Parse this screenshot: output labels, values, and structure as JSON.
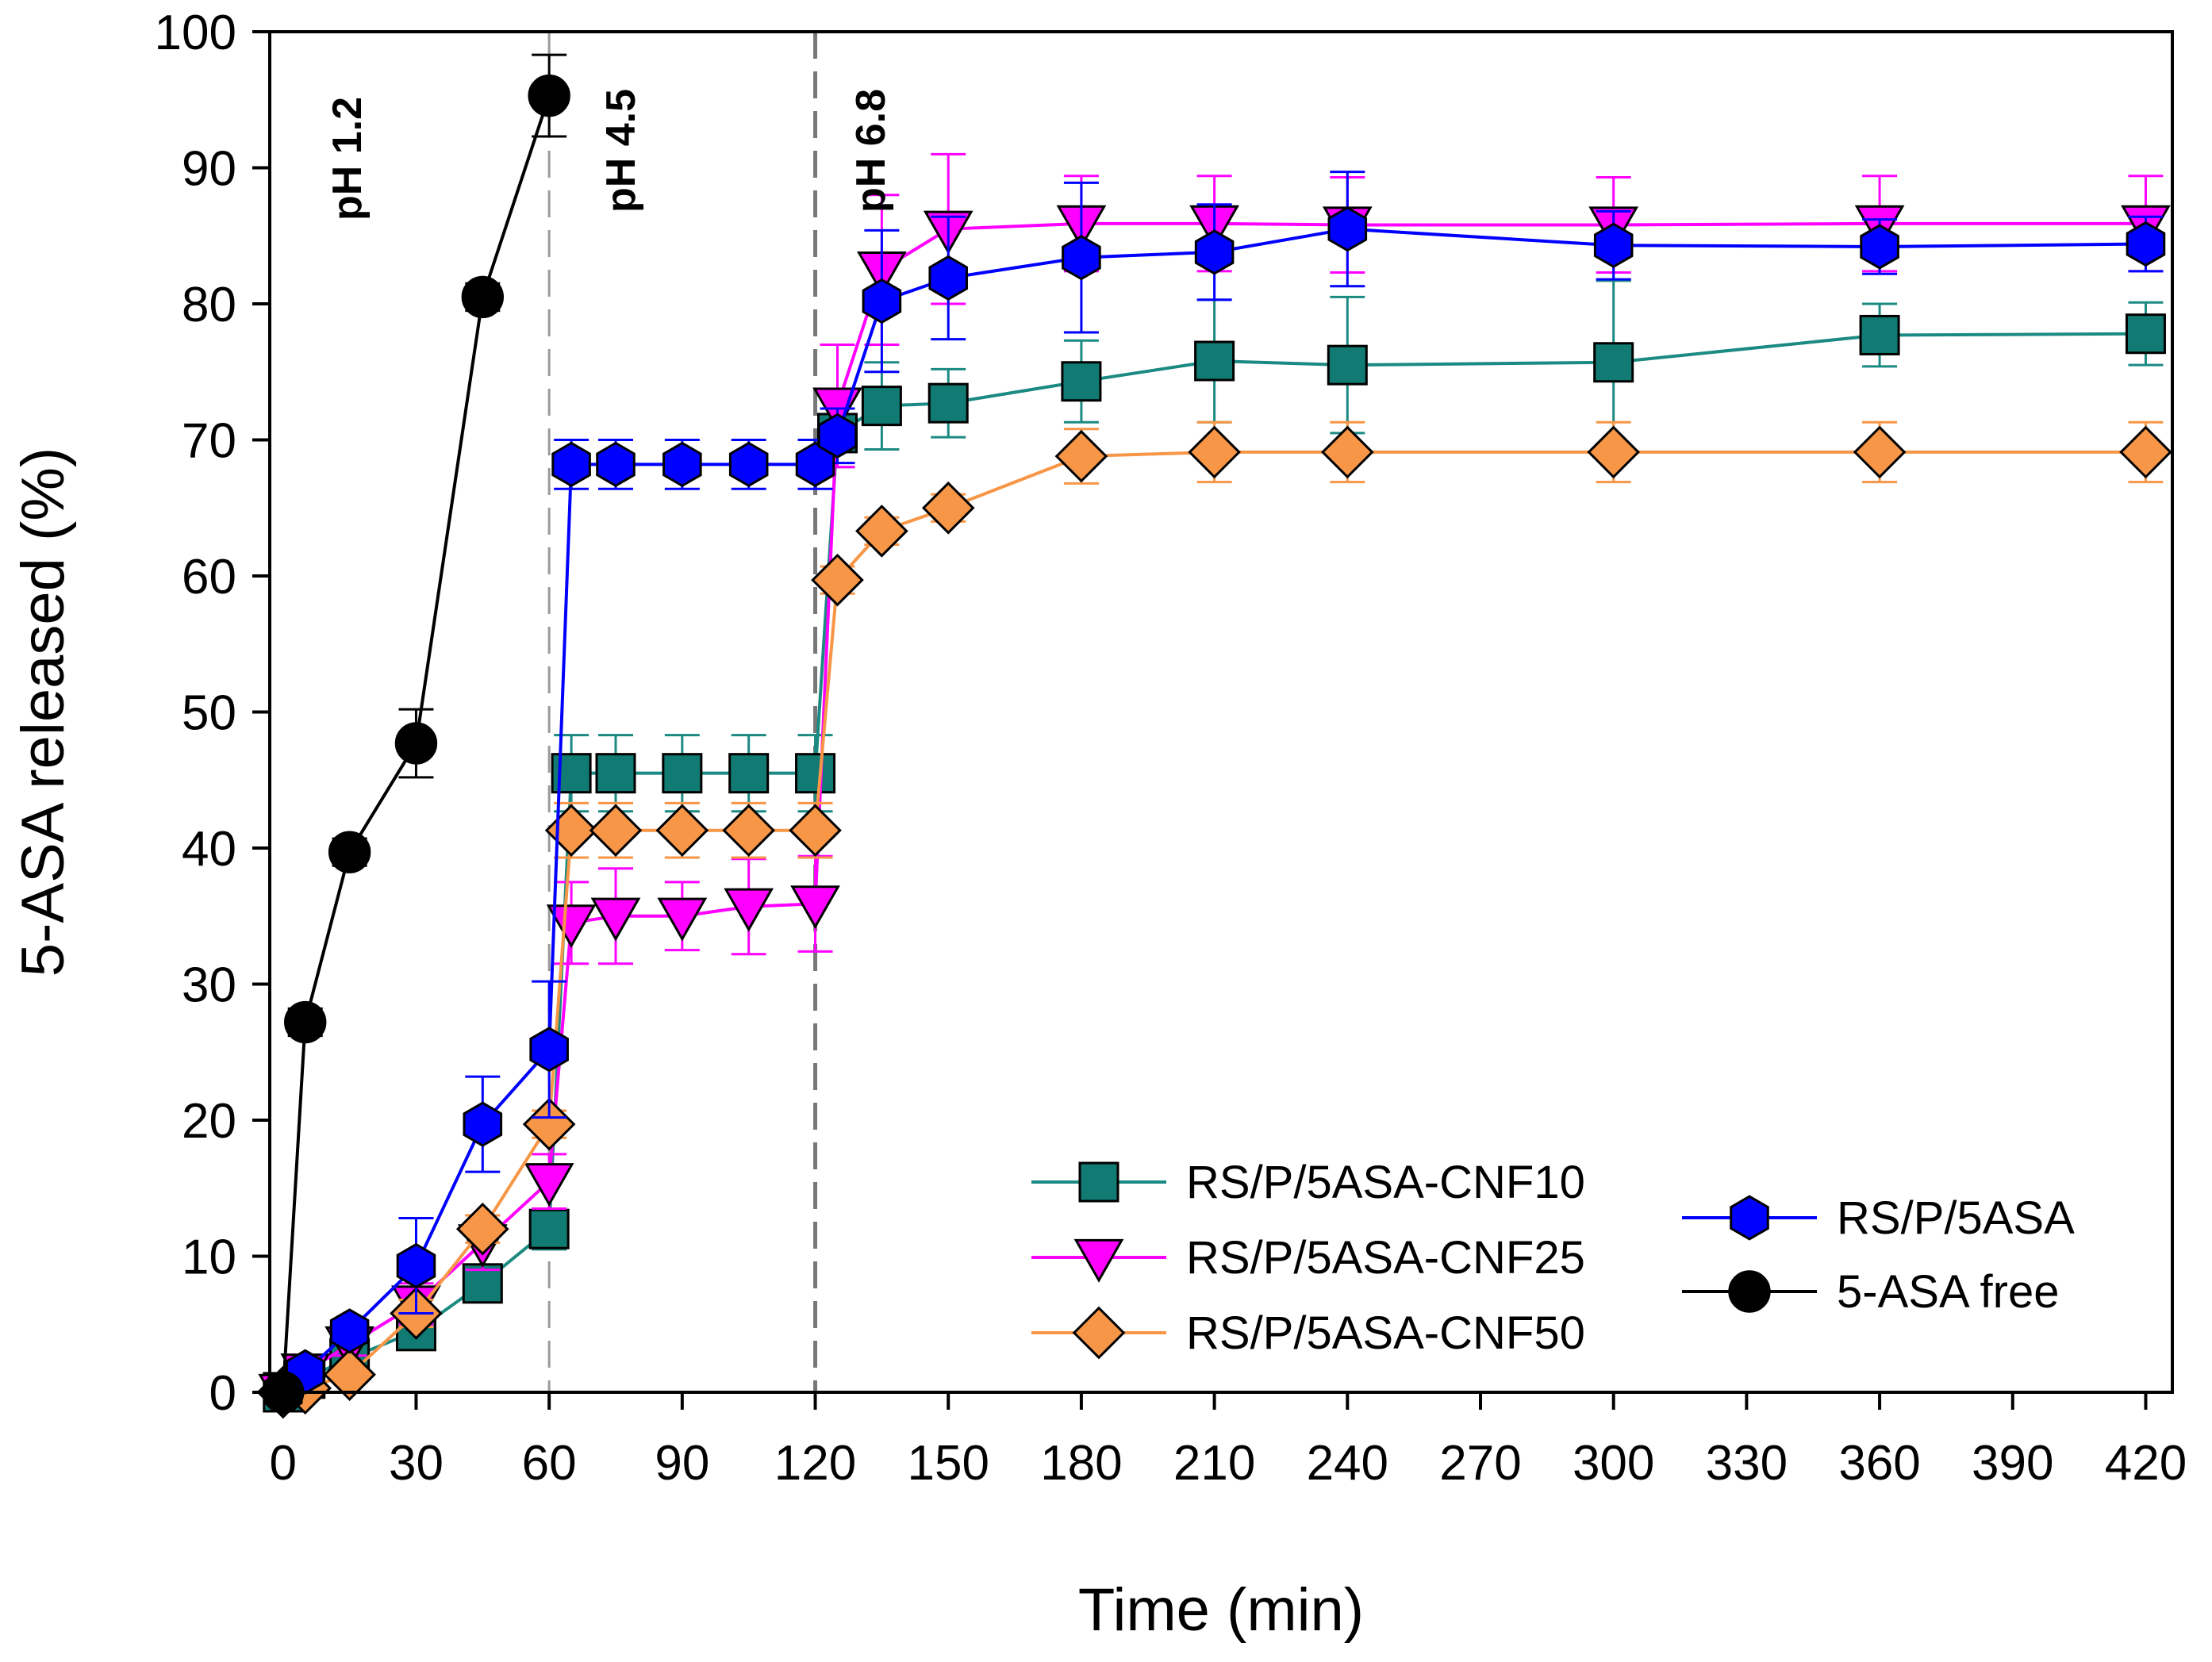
{
  "chart_data": {
    "type": "line",
    "title": "",
    "xlabel": "Time (min)",
    "ylabel": "5-ASA released (%)",
    "xlim": [
      -3,
      426
    ],
    "ylim": [
      0,
      100
    ],
    "x_ticks": [
      0,
      30,
      60,
      90,
      120,
      150,
      180,
      210,
      240,
      270,
      300,
      330,
      360,
      390,
      420
    ],
    "y_ticks": [
      0,
      10,
      20,
      30,
      40,
      50,
      60,
      70,
      80,
      90,
      100
    ],
    "x_tick_labels": [
      "0",
      "30",
      "60",
      "90",
      "120",
      "150",
      "180",
      "210",
      "240",
      "270",
      "300",
      "330",
      "360",
      "390",
      "420"
    ],
    "y_tick_labels": [
      "0",
      "10",
      "20",
      "30",
      "40",
      "50",
      "60",
      "70",
      "80",
      "90",
      "100"
    ],
    "phase_markers": [
      {
        "x": 60,
        "label": "pH 4.5"
      },
      {
        "x": 120,
        "label": "pH 6.8"
      }
    ],
    "phase_labels": [
      "pH 1.2",
      "pH 4.5",
      "pH 6.8"
    ],
    "legend_position": "bottom-right",
    "series": [
      {
        "name": "RS/P/5ASA-CNF10",
        "color": "#1b8a82",
        "fill": "#117a72",
        "marker": "square",
        "x": [
          0,
          5,
          15,
          30,
          45,
          60,
          65,
          75,
          90,
          105,
          120,
          125,
          135,
          150,
          180,
          210,
          240,
          300,
          360,
          420
        ],
        "y": [
          0,
          1.0,
          2.5,
          4.5,
          8.0,
          12.0,
          45.5,
          45.5,
          45.5,
          45.5,
          45.5,
          70.5,
          72.5,
          72.7,
          74.3,
          75.8,
          75.5,
          75.7,
          77.7,
          77.8
        ],
        "err": [
          0,
          0.5,
          0.8,
          1.2,
          1.2,
          1.5,
          2.8,
          2.8,
          2.8,
          2.8,
          2.8,
          2.5,
          3.2,
          2.5,
          3.0,
          4.5,
          5.0,
          6.0,
          2.3,
          2.3
        ]
      },
      {
        "name": "RS/P/5ASA-CNF25",
        "color": "#ff00ff",
        "fill": "#ff00ff",
        "marker": "triangle-down",
        "x": [
          0,
          5,
          15,
          30,
          45,
          60,
          65,
          75,
          90,
          105,
          120,
          125,
          135,
          150,
          180,
          210,
          240,
          300,
          360,
          420
        ],
        "y": [
          0,
          1.5,
          3.5,
          6.5,
          11.0,
          15.5,
          34.5,
          35.0,
          35.0,
          35.7,
          35.9,
          72.5,
          82.5,
          85.5,
          85.9,
          85.9,
          85.8,
          85.8,
          85.9,
          85.9
        ],
        "err": [
          0,
          0.5,
          0.8,
          1.5,
          2.0,
          2.0,
          3.0,
          3.5,
          2.5,
          3.5,
          3.5,
          4.5,
          5.5,
          5.5,
          3.5,
          3.5,
          3.5,
          3.5,
          3.5,
          3.5
        ]
      },
      {
        "name": "RS/P/5ASA-CNF50",
        "color": "#f79646",
        "fill": "#f79646",
        "marker": "diamond",
        "x": [
          0,
          5,
          15,
          30,
          45,
          60,
          65,
          75,
          90,
          105,
          120,
          125,
          135,
          150,
          180,
          210,
          240,
          300,
          360,
          420
        ],
        "y": [
          0,
          0.3,
          1.3,
          5.8,
          12.0,
          19.7,
          41.3,
          41.3,
          41.3,
          41.3,
          41.3,
          59.7,
          63.3,
          65.0,
          68.8,
          69.1,
          69.1,
          69.1,
          69.1,
          69.1
        ],
        "err": [
          0,
          0.3,
          0.5,
          1.0,
          1.0,
          1.0,
          2.0,
          2.0,
          2.0,
          2.0,
          2.0,
          1.0,
          1.0,
          1.0,
          2.0,
          2.2,
          2.2,
          2.2,
          2.2,
          2.2
        ]
      },
      {
        "name": "RS/P/5ASA",
        "color": "#0000ff",
        "fill": "#0000ff",
        "marker": "hexagon",
        "x": [
          0,
          5,
          15,
          30,
          45,
          60,
          65,
          75,
          90,
          105,
          120,
          125,
          135,
          150,
          180,
          210,
          240,
          300,
          360,
          420
        ],
        "y": [
          0,
          1.5,
          4.5,
          9.3,
          19.7,
          25.2,
          68.2,
          68.2,
          68.2,
          68.2,
          68.2,
          70.3,
          80.2,
          81.9,
          83.4,
          83.8,
          85.5,
          84.3,
          84.2,
          84.4
        ],
        "err": [
          0,
          0.5,
          0.8,
          3.5,
          3.5,
          5.0,
          1.8,
          1.8,
          1.8,
          1.8,
          1.8,
          2.0,
          5.2,
          4.5,
          5.5,
          3.5,
          4.2,
          2.5,
          2.0,
          2.0
        ]
      },
      {
        "name": "5-ASA free",
        "color": "#000000",
        "fill": "#000000",
        "marker": "circle",
        "x": [
          0,
          5,
          15,
          30,
          45,
          60
        ],
        "y": [
          0,
          27.2,
          39.7,
          47.7,
          80.5,
          95.3
        ],
        "err": [
          0,
          1.0,
          1.0,
          2.5,
          1.0,
          3.0
        ]
      }
    ]
  }
}
